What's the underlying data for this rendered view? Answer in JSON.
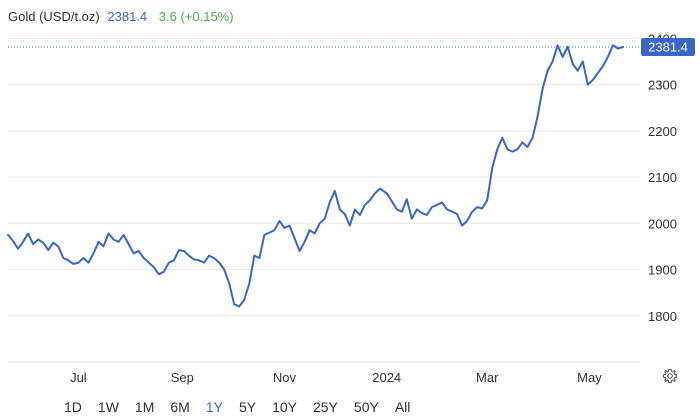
{
  "header": {
    "name": "Gold (USD/t.oz)",
    "price": "2381.4",
    "change": "3.6 (+0.15%)"
  },
  "colors": {
    "line": "#3b67c4",
    "change_positive": "#4caf50",
    "grid": "#e9e9e9",
    "badge_bg": "#3b67c4",
    "badge_text": "#ffffff"
  },
  "chart_data": {
    "type": "line",
    "title": "Gold (USD/t.oz)",
    "xlabel": "",
    "ylabel": "",
    "ylim": [
      1700,
      2450
    ],
    "yticks": [
      1800,
      1900,
      2000,
      2100,
      2200,
      2300,
      2400
    ],
    "grid": true,
    "last_value": 2381.4,
    "last_value_label": "2381.4",
    "x_tick_labels": [
      {
        "label": "Jul",
        "x": "2023-07-01"
      },
      {
        "label": "Sep",
        "x": "2023-09-01"
      },
      {
        "label": "Nov",
        "x": "2023-11-01"
      },
      {
        "label": "2024",
        "x": "2024-01-01"
      },
      {
        "label": "Mar",
        "x": "2024-03-01"
      },
      {
        "label": "May",
        "x": "2024-05-01"
      }
    ],
    "xlim": [
      "2023-05-20",
      "2024-05-24"
    ],
    "series": [
      {
        "points": [
          [
            "2023-05-20",
            1975
          ],
          [
            "2023-05-23",
            1962
          ],
          [
            "2023-05-26",
            1945
          ],
          [
            "2023-05-29",
            1960
          ],
          [
            "2023-06-01",
            1978
          ],
          [
            "2023-06-04",
            1955
          ],
          [
            "2023-06-07",
            1965
          ],
          [
            "2023-06-10",
            1958
          ],
          [
            "2023-06-13",
            1942
          ],
          [
            "2023-06-16",
            1958
          ],
          [
            "2023-06-19",
            1950
          ],
          [
            "2023-06-22",
            1925
          ],
          [
            "2023-06-25",
            1920
          ],
          [
            "2023-06-28",
            1912
          ],
          [
            "2023-07-01",
            1915
          ],
          [
            "2023-07-04",
            1925
          ],
          [
            "2023-07-07",
            1915
          ],
          [
            "2023-07-10",
            1935
          ],
          [
            "2023-07-13",
            1960
          ],
          [
            "2023-07-16",
            1950
          ],
          [
            "2023-07-19",
            1978
          ],
          [
            "2023-07-22",
            1965
          ],
          [
            "2023-07-25",
            1960
          ],
          [
            "2023-07-28",
            1975
          ],
          [
            "2023-07-31",
            1955
          ],
          [
            "2023-08-03",
            1935
          ],
          [
            "2023-08-06",
            1940
          ],
          [
            "2023-08-09",
            1925
          ],
          [
            "2023-08-12",
            1915
          ],
          [
            "2023-08-15",
            1905
          ],
          [
            "2023-08-18",
            1890
          ],
          [
            "2023-08-21",
            1895
          ],
          [
            "2023-08-24",
            1915
          ],
          [
            "2023-08-27",
            1920
          ],
          [
            "2023-08-30",
            1942
          ],
          [
            "2023-09-02",
            1940
          ],
          [
            "2023-09-05",
            1930
          ],
          [
            "2023-09-08",
            1922
          ],
          [
            "2023-09-11",
            1920
          ],
          [
            "2023-09-14",
            1915
          ],
          [
            "2023-09-17",
            1930
          ],
          [
            "2023-09-20",
            1925
          ],
          [
            "2023-09-23",
            1915
          ],
          [
            "2023-09-26",
            1900
          ],
          [
            "2023-09-29",
            1870
          ],
          [
            "2023-10-02",
            1825
          ],
          [
            "2023-10-05",
            1820
          ],
          [
            "2023-10-08",
            1835
          ],
          [
            "2023-10-11",
            1870
          ],
          [
            "2023-10-14",
            1930
          ],
          [
            "2023-10-17",
            1925
          ],
          [
            "2023-10-20",
            1975
          ],
          [
            "2023-10-23",
            1980
          ],
          [
            "2023-10-26",
            1985
          ],
          [
            "2023-10-29",
            2005
          ],
          [
            "2023-11-01",
            1990
          ],
          [
            "2023-11-04",
            1995
          ],
          [
            "2023-11-07",
            1968
          ],
          [
            "2023-11-10",
            1940
          ],
          [
            "2023-11-13",
            1960
          ],
          [
            "2023-11-16",
            1985
          ],
          [
            "2023-11-19",
            1978
          ],
          [
            "2023-11-22",
            2000
          ],
          [
            "2023-11-25",
            2010
          ],
          [
            "2023-11-28",
            2045
          ],
          [
            "2023-12-01",
            2070
          ],
          [
            "2023-12-04",
            2030
          ],
          [
            "2023-12-07",
            2020
          ],
          [
            "2023-12-10",
            1995
          ],
          [
            "2023-12-13",
            2030
          ],
          [
            "2023-12-16",
            2018
          ],
          [
            "2023-12-19",
            2040
          ],
          [
            "2023-12-22",
            2050
          ],
          [
            "2023-12-25",
            2065
          ],
          [
            "2023-12-28",
            2075
          ],
          [
            "2024-01-01",
            2065
          ],
          [
            "2024-01-04",
            2048
          ],
          [
            "2024-01-07",
            2030
          ],
          [
            "2024-01-10",
            2025
          ],
          [
            "2024-01-13",
            2052
          ],
          [
            "2024-01-16",
            2010
          ],
          [
            "2024-01-19",
            2030
          ],
          [
            "2024-01-22",
            2022
          ],
          [
            "2024-01-25",
            2018
          ],
          [
            "2024-01-28",
            2035
          ],
          [
            "2024-01-31",
            2040
          ],
          [
            "2024-02-03",
            2045
          ],
          [
            "2024-02-06",
            2030
          ],
          [
            "2024-02-09",
            2025
          ],
          [
            "2024-02-12",
            2020
          ],
          [
            "2024-02-15",
            1995
          ],
          [
            "2024-02-18",
            2005
          ],
          [
            "2024-02-21",
            2025
          ],
          [
            "2024-02-24",
            2035
          ],
          [
            "2024-02-27",
            2032
          ],
          [
            "2024-03-01",
            2050
          ],
          [
            "2024-03-04",
            2120
          ],
          [
            "2024-03-07",
            2160
          ],
          [
            "2024-03-10",
            2185
          ],
          [
            "2024-03-13",
            2160
          ],
          [
            "2024-03-16",
            2155
          ],
          [
            "2024-03-19",
            2160
          ],
          [
            "2024-03-22",
            2175
          ],
          [
            "2024-03-25",
            2165
          ],
          [
            "2024-03-28",
            2185
          ],
          [
            "2024-03-31",
            2230
          ],
          [
            "2024-04-03",
            2290
          ],
          [
            "2024-04-06",
            2330
          ],
          [
            "2024-04-09",
            2350
          ],
          [
            "2024-04-12",
            2385
          ],
          [
            "2024-04-15",
            2360
          ],
          [
            "2024-04-18",
            2382
          ],
          [
            "2024-04-21",
            2345
          ],
          [
            "2024-04-24",
            2330
          ],
          [
            "2024-04-27",
            2350
          ],
          [
            "2024-04-30",
            2300
          ],
          [
            "2024-05-03",
            2310
          ],
          [
            "2024-05-06",
            2325
          ],
          [
            "2024-05-09",
            2340
          ],
          [
            "2024-05-12",
            2360
          ],
          [
            "2024-05-15",
            2385
          ],
          [
            "2024-05-18",
            2378
          ],
          [
            "2024-05-21",
            2381.4
          ]
        ]
      }
    ]
  },
  "range_buttons": [
    "1D",
    "1W",
    "1M",
    "6M",
    "1Y",
    "5Y",
    "10Y",
    "25Y",
    "50Y",
    "All"
  ],
  "active_range": "1Y",
  "settings_icon": "gear-icon"
}
